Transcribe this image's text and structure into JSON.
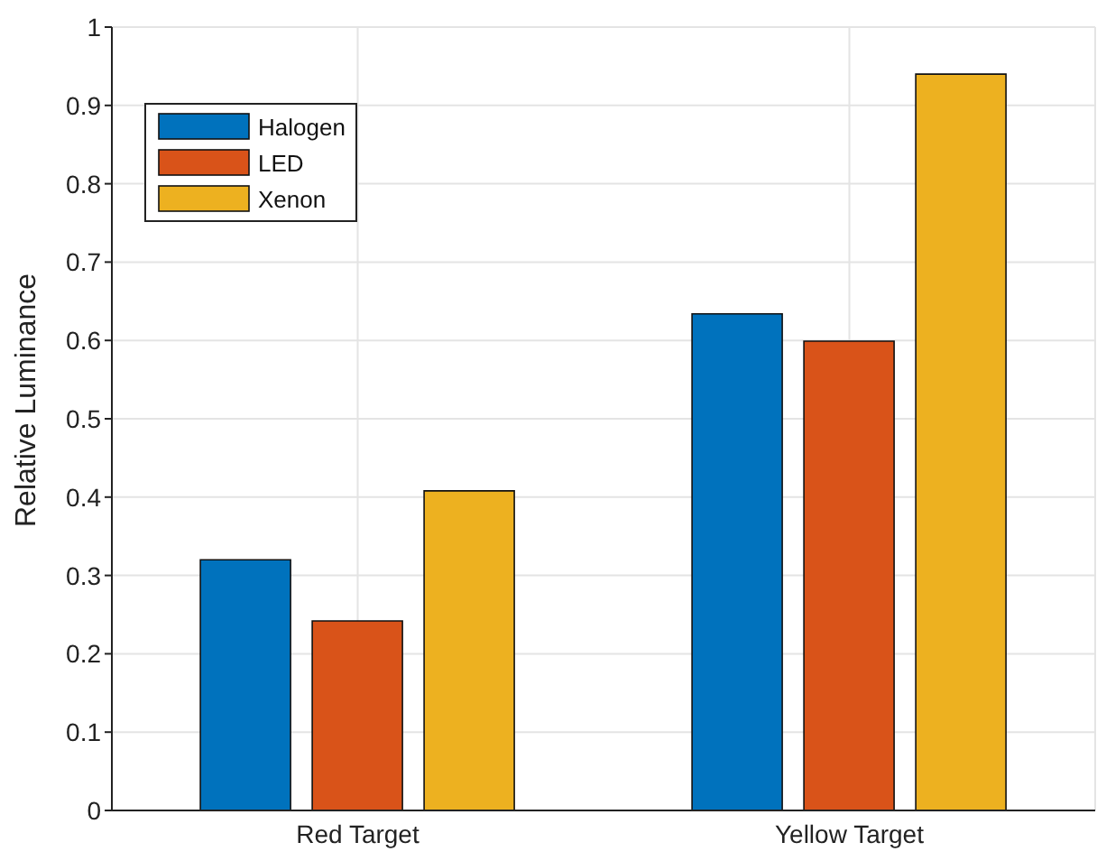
{
  "chart_data": {
    "type": "bar",
    "ylabel": "Relative Luminance",
    "categories": [
      "Red Target",
      "Yellow Target"
    ],
    "series": [
      {
        "name": "Halogen",
        "color": "#0072bd",
        "values": [
          0.32,
          0.634
        ]
      },
      {
        "name": "LED",
        "color": "#d95319",
        "values": [
          0.242,
          0.599
        ]
      },
      {
        "name": "Xenon",
        "color": "#edb120",
        "values": [
          0.408,
          0.94
        ]
      }
    ],
    "ylim": [
      0,
      1
    ],
    "yticks": [
      0,
      0.1,
      0.2,
      0.3,
      0.4,
      0.5,
      0.6,
      0.7,
      0.8,
      0.9,
      1
    ],
    "grid": true,
    "legend": "top left"
  }
}
